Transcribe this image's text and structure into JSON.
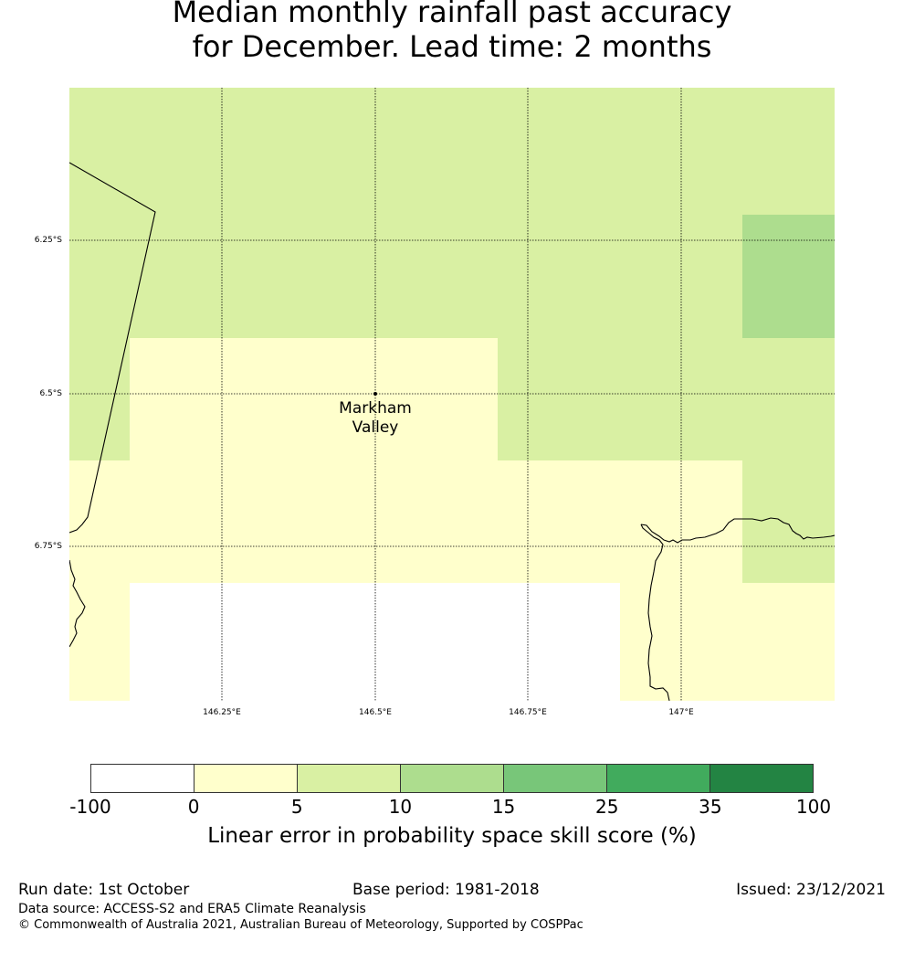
{
  "title": {
    "line1": "Median monthly rainfall past accuracy",
    "line2": "for December. Lead time: 2 months"
  },
  "map": {
    "lat_labels": [
      "6.25°S",
      "6.5°S",
      "6.75°S"
    ],
    "lon_labels": [
      "146.25°E",
      "146.5°E",
      "146.75°E",
      "147°E"
    ],
    "place": {
      "name_line1": "Markham",
      "name_line2": "Valley"
    }
  },
  "colorbar": {
    "ticks": [
      "-100",
      "0",
      "5",
      "10",
      "15",
      "25",
      "35",
      "100"
    ],
    "colors": [
      "#ffffff",
      "#ffffcc",
      "#d9f0a3",
      "#addd8e",
      "#78c679",
      "#41ab5d",
      "#238443"
    ],
    "label": "Linear error in probability space skill score (%)"
  },
  "footer": {
    "run_date": "Run date: 1st October",
    "base_period": "Base period: 1981-2018",
    "issued": "Issued: 23/12/2021",
    "data_source": "Data source: ACCESS-S2 and ERA5 Climate Reanalysis",
    "copyright": "© Commonwealth of Australia 2021, Australian Bureau of Meteorology, Supported by COSPPac"
  }
}
